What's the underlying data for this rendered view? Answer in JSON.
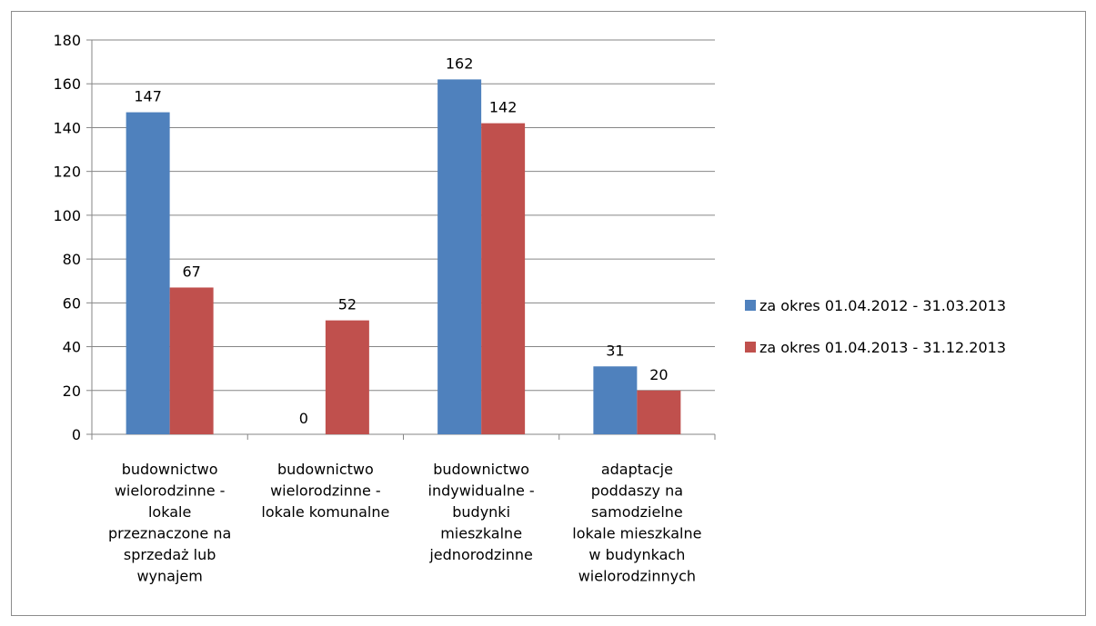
{
  "chart_data": {
    "type": "bar",
    "title": "",
    "xlabel": "",
    "ylabel": "",
    "ylim": [
      0,
      180
    ],
    "yticks": [
      0,
      20,
      40,
      60,
      80,
      100,
      120,
      140,
      160,
      180
    ],
    "grid": true,
    "legend_position": "right",
    "categories": [
      [
        "budownictwo",
        "wielorodzinne -",
        "lokale",
        "przeznaczone na",
        "sprzedaż lub",
        "wynajem"
      ],
      [
        "budownictwo",
        "wielorodzinne -",
        "lokale komunalne"
      ],
      [
        "budownictwo",
        "indywidualne -",
        "budynki",
        "mieszkalne",
        "jednorodzinne"
      ],
      [
        "adaptacje",
        "poddaszy na",
        "samodzielne",
        "lokale mieszkalne",
        "w budynkach",
        "wielorodzinnych"
      ]
    ],
    "series": [
      {
        "name": "za okres 01.04.2012 - 31.03.2013",
        "color": "#4f81bd",
        "values": [
          147,
          0,
          162,
          31
        ]
      },
      {
        "name": "za okres 01.04.2013 - 31.12.2013",
        "color": "#c0504d",
        "values": [
          67,
          52,
          142,
          20
        ]
      }
    ]
  }
}
